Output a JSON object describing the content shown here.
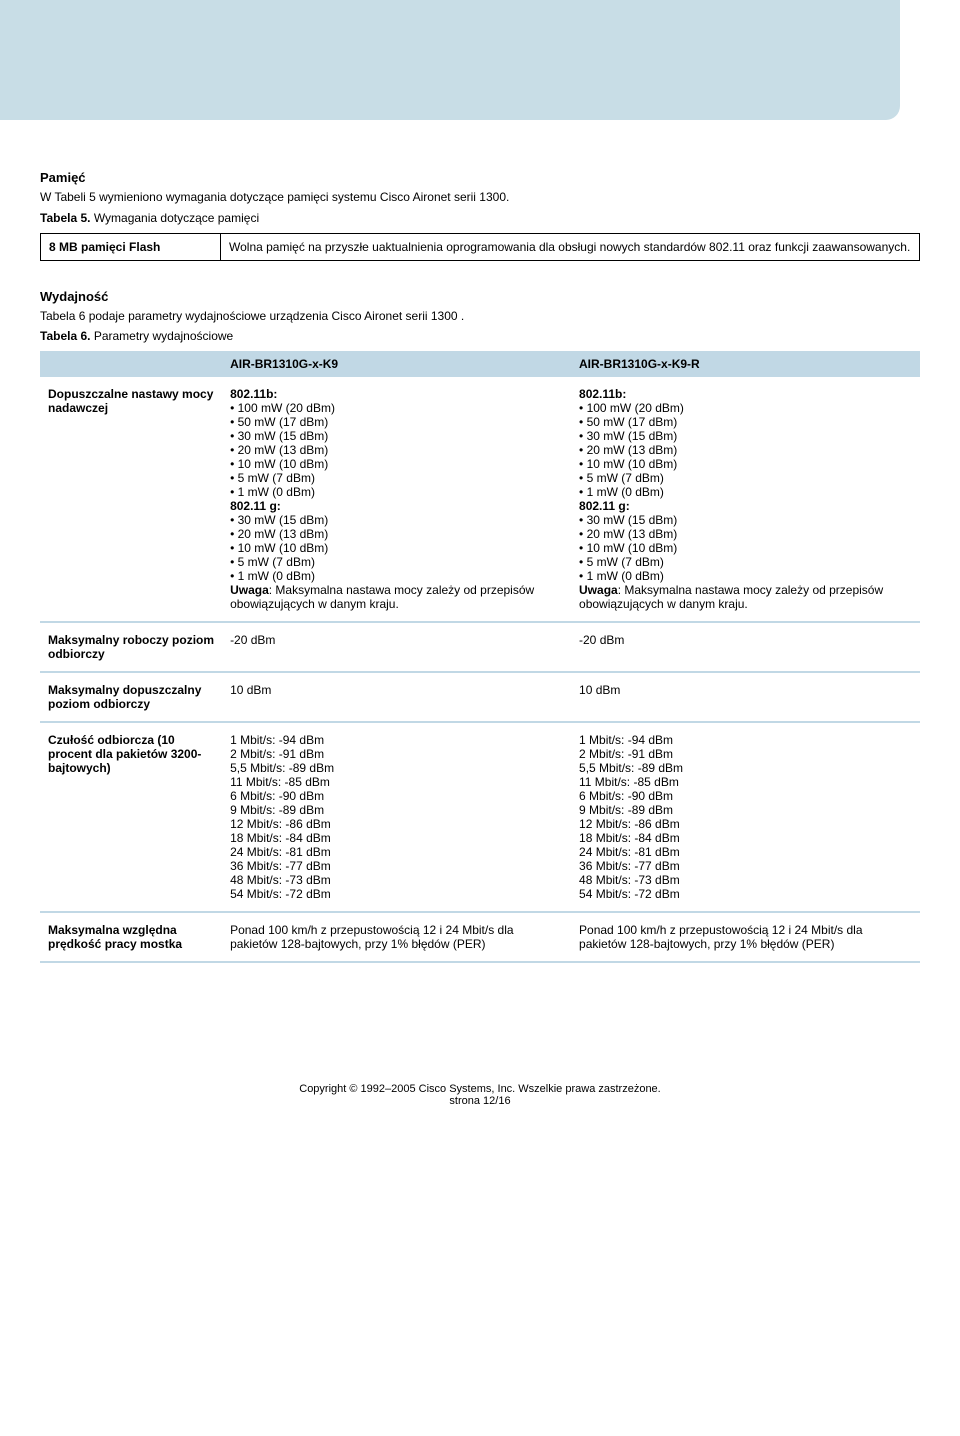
{
  "section1": {
    "heading": "Pamięć",
    "intro": "W Tabeli 5 wymieniono wymagania dotyczące pamięci systemu Cisco Aironet serii 1300.",
    "table_label": "Tabela 5.",
    "table_title": "Wymagania dotyczące pamięci",
    "row_label": "8 MB pamięci Flash",
    "row_value": "Wolna pamięć na przyszłe uaktualnienia oprogramowania dla obsługi nowych standardów 802.11 oraz funkcji zaawansowanych."
  },
  "section2": {
    "heading": "Wydajność",
    "intro": "Tabela 6 podaje parametry wydajnościowe urządzenia Cisco Aironet serii 1300 .",
    "table_label": "Tabela 6.",
    "table_title": "Parametry wydajnościowe",
    "col1": "AIR-BR1310G-x-K9",
    "col2": "AIR-BR1310G-x-K9-R",
    "header_bg": "#c1d8e5",
    "rows": [
      {
        "label": "Dopuszczalne nastawy mocy nadawczej",
        "c1_head1": "802.11b:",
        "c1_list1": [
          "100 mW (20 dBm)",
          "50 mW (17 dBm)",
          "30 mW (15 dBm)",
          "20 mW (13 dBm)",
          "10 mW (10 dBm)",
          "5 mW (7 dBm)",
          "1 mW (0 dBm)"
        ],
        "c1_head2": "802.11 g:",
        "c1_list2": [
          "30 mW (15 dBm)",
          "20 mW (13 dBm)",
          "10 mW (10 dBm)",
          "5 mW (7 dBm)",
          "1 mW (0 dBm)"
        ],
        "c1_note_b": "Uwaga",
        "c1_note": ": Maksymalna nastawa mocy zależy od przepisów obowiązujących w danym kraju.",
        "c2_head1": "802.11b:",
        "c2_list1": [
          "100 mW (20 dBm)",
          "50 mW (17 dBm)",
          "30 mW (15 dBm)",
          "20 mW (13 dBm)",
          "10 mW (10 dBm)",
          "5 mW (7 dBm)",
          "1 mW (0 dBm)"
        ],
        "c2_head2": "802.11 g:",
        "c2_list2": [
          "30 mW (15 dBm)",
          "20 mW (13 dBm)",
          "10 mW (10 dBm)",
          "5 mW (7 dBm)",
          "1 mW (0 dBm)"
        ],
        "c2_note_b": "Uwaga",
        "c2_note": ": Maksymalna nastawa mocy zależy od przepisów obowiązujących w danym kraju."
      },
      {
        "label": "Maksymalny roboczy poziom odbiorczy",
        "c1": "-20 dBm",
        "c2": "-20 dBm"
      },
      {
        "label": "Maksymalny dopuszczalny poziom odbiorczy",
        "c1": "10 dBm",
        "c2": "10 dBm"
      },
      {
        "label": "Czułość odbiorcza (10 procent dla pakietów 3200-bajtowych)",
        "c1_lines": [
          "1 Mbit/s: -94 dBm",
          "2 Mbit/s: -91 dBm",
          "5,5 Mbit/s: -89 dBm",
          "11 Mbit/s: -85 dBm",
          "6 Mbit/s: -90 dBm",
          "9 Mbit/s: -89 dBm",
          "12 Mbit/s: -86 dBm",
          "18 Mbit/s: -84 dBm",
          "24 Mbit/s: -81 dBm",
          "36 Mbit/s: -77 dBm",
          "48 Mbit/s: -73 dBm",
          "54 Mbit/s: -72 dBm"
        ],
        "c2_lines": [
          "1 Mbit/s: -94 dBm",
          "2 Mbit/s: -91 dBm",
          "5,5 Mbit/s: -89 dBm",
          "11 Mbit/s: -85 dBm",
          "6 Mbit/s: -90 dBm",
          "9 Mbit/s: -89 dBm",
          "12 Mbit/s: -86 dBm",
          "18 Mbit/s: -84 dBm",
          "24 Mbit/s: -81 dBm",
          "36 Mbit/s: -77 dBm",
          "48 Mbit/s: -73 dBm",
          "54 Mbit/s: -72 dBm"
        ]
      },
      {
        "label": "Maksymalna względna prędkość pracy mostka",
        "c1": "Ponad 100 km/h z przepustowością 12 i 24 Mbit/s dla pakietów 128-bajtowych, przy 1% błędów (PER)",
        "c2": "Ponad 100 km/h z przepustowością 12 i 24 Mbit/s dla pakietów 128-bajtowych, przy 1% błędów (PER)"
      }
    ]
  },
  "footer": {
    "copyright": "Copyright © 1992–2005 Cisco Systems, Inc. Wszelkie prawa zastrzeżone.",
    "page": "strona 12/16"
  }
}
